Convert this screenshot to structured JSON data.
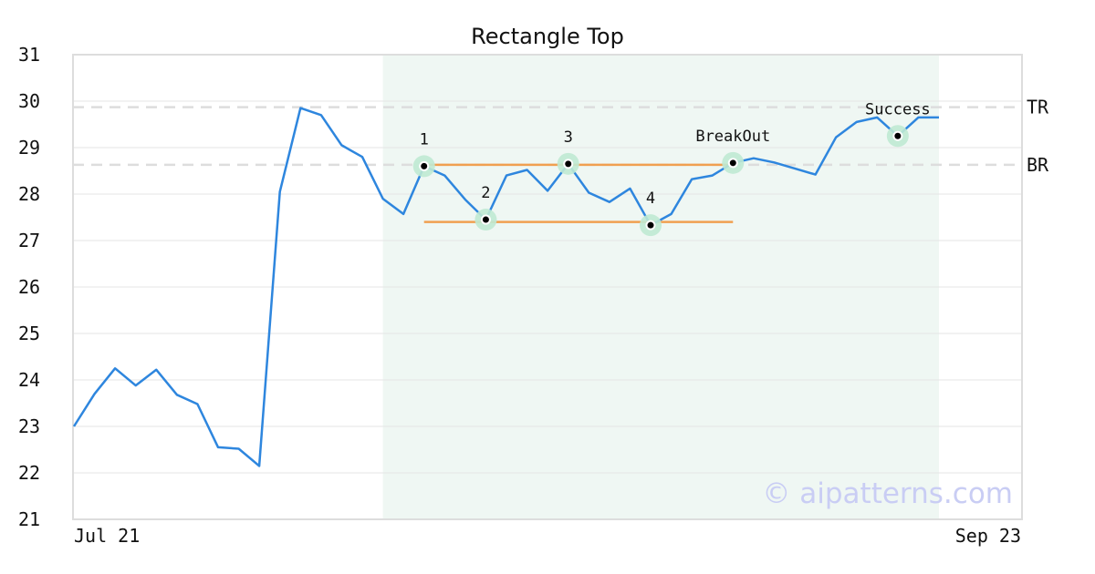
{
  "chart_data": {
    "type": "line",
    "title": "Rectangle Top",
    "x_tick_labels": [
      "Jul 21",
      "Sep 23"
    ],
    "y_ticks": [
      21,
      22,
      23,
      24,
      25,
      26,
      27,
      28,
      29,
      30,
      31
    ],
    "ylim": [
      21,
      31
    ],
    "grid": "horizontal",
    "series": [
      {
        "color": "#2e86de",
        "values": [
          23.0,
          23.7,
          24.25,
          23.88,
          24.22,
          23.68,
          23.48,
          22.55,
          22.52,
          22.15,
          28.05,
          29.85,
          29.7,
          29.05,
          28.8,
          27.9,
          27.57,
          28.6,
          28.4,
          27.88,
          27.45,
          28.4,
          28.52,
          28.07,
          28.65,
          28.03,
          27.83,
          28.12,
          27.33,
          27.57,
          28.32,
          28.4,
          28.67,
          28.77,
          28.68,
          28.55,
          28.42,
          29.22,
          29.55,
          29.65,
          29.25,
          29.65,
          29.65
        ]
      }
    ],
    "pattern_window": {
      "start_index": 15,
      "end_index": 42,
      "color": "#eff7f3"
    },
    "reference_lines": [
      {
        "label": "TR",
        "value": 29.87,
        "color": "#dddddd"
      },
      {
        "label": "BR",
        "value": 28.63,
        "color": "#dddddd"
      }
    ],
    "rectangle_lines": [
      {
        "value": 28.63,
        "start_index": 17,
        "end_index": 32,
        "color": "#f0a050"
      },
      {
        "value": 27.4,
        "start_index": 17,
        "end_index": 32,
        "color": "#f0a050"
      }
    ],
    "points": [
      {
        "label": "1",
        "index": 17,
        "value": 28.6,
        "label_position": "above"
      },
      {
        "label": "2",
        "index": 20,
        "value": 27.45,
        "label_position": "above"
      },
      {
        "label": "3",
        "index": 24,
        "value": 28.65,
        "label_position": "above"
      },
      {
        "label": "4",
        "index": 28,
        "value": 27.33,
        "label_position": "above"
      },
      {
        "label": "BreakOut",
        "index": 32,
        "value": 28.67,
        "label_position": "above"
      },
      {
        "label": "Success",
        "index": 40,
        "value": 29.25,
        "label_position": "above"
      }
    ],
    "watermark": "© aipatterns.com"
  }
}
